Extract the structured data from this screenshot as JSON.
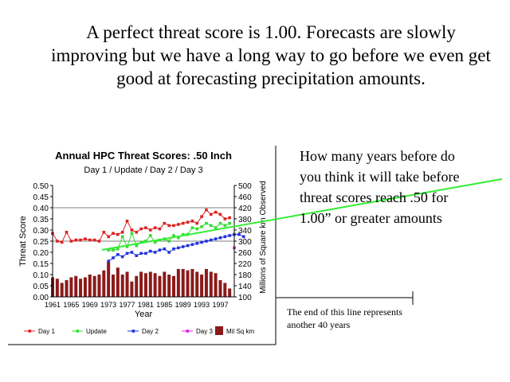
{
  "slide": {
    "headline": "A perfect threat score is 1.00. Forecasts are slowly improving but we have a long way to go before we even get good at forecasting precipitation amounts.",
    "question": "How many years before do you think it will take before threat scores reach .50 for 1.00” or greater amounts",
    "note": "The end of this line represents another 40 years",
    "trend_line_color": "#33ee33"
  },
  "chart_data": {
    "type": "bar+line",
    "title": "Annual HPC Threat Scores:  .50 Inch",
    "subtitle": "Day 1 / Update / Day 2 / Day 3",
    "ylabel": "Threat Score",
    "ylabel_right": "Millions of Square km Observed",
    "xlabel": "Year",
    "ylim": [
      0,
      0.5
    ],
    "ylim_right": [
      100,
      500
    ],
    "yticks": [
      "0.50",
      "0.45",
      "0.40",
      "0.35",
      "0.30",
      "0.25",
      "0.20",
      "0.15",
      "0.10",
      "0.05",
      "0.00"
    ],
    "yticks_right": [
      "500",
      "460",
      "420",
      "380",
      "340",
      "300",
      "260",
      "220",
      "180",
      "140",
      "100"
    ],
    "xtick_labels": [
      "1961",
      "1965",
      "1969",
      "1973",
      "1977",
      "1981",
      "1985",
      "1989",
      "1993",
      "1997"
    ],
    "grid": "horizontal at 0.25 and 0.40",
    "legend_position": "bottom",
    "series": [
      {
        "name": "Day 1",
        "color": "#dd2222",
        "start_year": 1961,
        "values": [
          0.285,
          0.25,
          0.245,
          0.29,
          0.25,
          0.255,
          0.255,
          0.26,
          0.255,
          0.255,
          0.25,
          0.29,
          0.27,
          0.285,
          0.28,
          0.29,
          0.34,
          0.3,
          0.29,
          0.305,
          0.31,
          0.3,
          0.31,
          0.305,
          0.33,
          0.32,
          0.32,
          0.325,
          0.33,
          0.335,
          0.34,
          0.33,
          0.36,
          0.39,
          0.37,
          0.38,
          0.37,
          0.35,
          0.355
        ]
      },
      {
        "name": "Update",
        "color": "#33dd33",
        "start_year": 1973,
        "values": [
          0.21,
          0.21,
          0.215,
          0.27,
          0.225,
          0.285,
          0.23,
          0.245,
          0.25,
          0.275,
          0.245,
          0.255,
          0.26,
          0.25,
          0.275,
          0.265,
          0.28,
          0.28,
          0.31,
          0.305,
          0.315,
          0.33,
          0.32,
          0.31,
          0.33,
          0.32,
          0.33
        ]
      },
      {
        "name": "Day 2",
        "color": "#2233dd",
        "start_year": 1973,
        "values": [
          0.16,
          0.175,
          0.19,
          0.18,
          0.195,
          0.2,
          0.185,
          0.195,
          0.195,
          0.205,
          0.2,
          0.21,
          0.215,
          0.2,
          0.215,
          0.22,
          0.225,
          0.23,
          0.235,
          0.24,
          0.245,
          0.25,
          0.255,
          0.26,
          0.265,
          0.27,
          0.275,
          0.28,
          0.28,
          0.27
        ]
      },
      {
        "name": "Day 3",
        "color": "#dd22dd",
        "start_year": 2000,
        "values": [
          0.22
        ]
      },
      {
        "name": "Mil Sq km",
        "color": "#8b1a1a",
        "type": "bar",
        "axis": "right",
        "start_year": 1961,
        "values": [
          170,
          165,
          150,
          160,
          170,
          175,
          165,
          170,
          180,
          175,
          180,
          195,
          225,
          180,
          205,
          180,
          190,
          155,
          175,
          190,
          185,
          190,
          185,
          175,
          190,
          180,
          175,
          200,
          200,
          195,
          200,
          190,
          180,
          200,
          190,
          185,
          160,
          150,
          130
        ]
      }
    ]
  }
}
